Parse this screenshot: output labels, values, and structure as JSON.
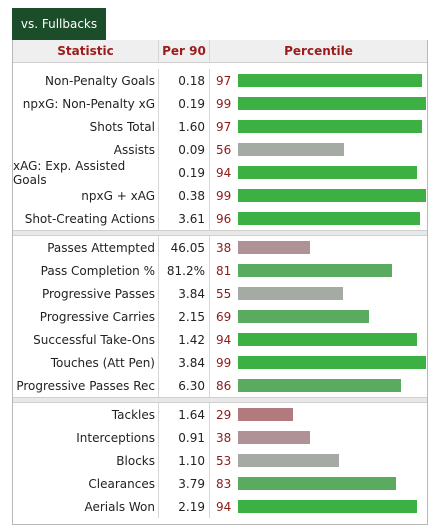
{
  "tab": {
    "label": "vs. Fullbacks"
  },
  "headers": {
    "statistic": "Statistic",
    "per90": "Per 90",
    "percentile": "Percentile"
  },
  "colors": {
    "high": "#3cb043",
    "mid_high": "#5aaa5f",
    "mid": "#a6aaa4",
    "low_mid": "#b09296",
    "low": "#b27a7e",
    "tab_bg": "#1b4d2a",
    "header_text": "#9b1c1c"
  },
  "groups": [
    {
      "rows": [
        {
          "stat": "Non-Penalty Goals",
          "per90": "0.18",
          "percentile": 97
        },
        {
          "stat": "npxG: Non-Penalty xG",
          "per90": "0.19",
          "percentile": 99
        },
        {
          "stat": "Shots Total",
          "per90": "1.60",
          "percentile": 97
        },
        {
          "stat": "Assists",
          "per90": "0.09",
          "percentile": 56
        },
        {
          "stat": "xAG: Exp. Assisted Goals",
          "per90": "0.19",
          "percentile": 94
        },
        {
          "stat": "npxG + xAG",
          "per90": "0.38",
          "percentile": 99
        },
        {
          "stat": "Shot-Creating Actions",
          "per90": "3.61",
          "percentile": 96
        }
      ]
    },
    {
      "rows": [
        {
          "stat": "Passes Attempted",
          "per90": "46.05",
          "percentile": 38
        },
        {
          "stat": "Pass Completion %",
          "per90": "81.2%",
          "percentile": 81
        },
        {
          "stat": "Progressive Passes",
          "per90": "3.84",
          "percentile": 55
        },
        {
          "stat": "Progressive Carries",
          "per90": "2.15",
          "percentile": 69
        },
        {
          "stat": "Successful Take-Ons",
          "per90": "1.42",
          "percentile": 94
        },
        {
          "stat": "Touches (Att Pen)",
          "per90": "3.84",
          "percentile": 99
        },
        {
          "stat": "Progressive Passes Rec",
          "per90": "6.30",
          "percentile": 86
        }
      ]
    },
    {
      "rows": [
        {
          "stat": "Tackles",
          "per90": "1.64",
          "percentile": 29
        },
        {
          "stat": "Interceptions",
          "per90": "0.91",
          "percentile": 38
        },
        {
          "stat": "Blocks",
          "per90": "1.10",
          "percentile": 53
        },
        {
          "stat": "Clearances",
          "per90": "3.79",
          "percentile": 83
        },
        {
          "stat": "Aerials Won",
          "per90": "2.19",
          "percentile": 94
        }
      ]
    }
  ]
}
